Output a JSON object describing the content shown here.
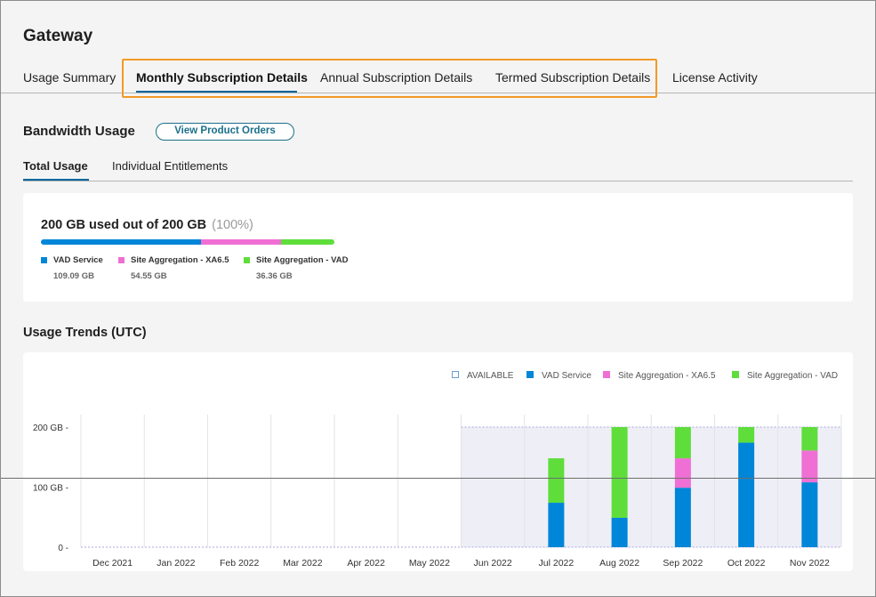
{
  "page": {
    "title": "Gateway"
  },
  "tabs": [
    {
      "label": "Usage Summary"
    },
    {
      "label": "Monthly Subscription Details"
    },
    {
      "label": "Annual Subscription Details"
    },
    {
      "label": "Termed Subscription Details"
    },
    {
      "label": "License Activity"
    }
  ],
  "bandwidth": {
    "title": "Bandwidth Usage",
    "orders_button": "View Product Orders",
    "subtabs": [
      {
        "label": "Total Usage"
      },
      {
        "label": "Individual Entitlements"
      }
    ],
    "summary": "200 GB used out of 200 GB",
    "percent": "(100%)",
    "legend": [
      {
        "name": "VAD Service",
        "value": "109.09 GB",
        "color": "#0086d8",
        "fraction": 0.545
      },
      {
        "name": "Site Aggregation - XA6.5",
        "value": "54.55 GB",
        "color": "#ef6fd4",
        "fraction": 0.273
      },
      {
        "name": "Site Aggregation - VAD",
        "value": "36.36 GB",
        "color": "#5fdd3b",
        "fraction": 0.182
      }
    ]
  },
  "trends": {
    "title": "Usage Trends (UTC)"
  },
  "chart_data": {
    "type": "bar",
    "stacked": true,
    "categories": [
      "Dec 2021",
      "Jan 2022",
      "Feb 2022",
      "Mar 2022",
      "Apr 2022",
      "May 2022",
      "Jun 2022",
      "Jul 2022",
      "Aug 2022",
      "Sep 2022",
      "Oct 2022",
      "Nov 2022"
    ],
    "ylim": [
      0,
      200
    ],
    "yticks": [
      {
        "value": 0,
        "label": "0 -"
      },
      {
        "value": 100,
        "label": "100 GB -"
      },
      {
        "value": 200,
        "label": "200 GB -"
      }
    ],
    "available": {
      "name": "AVAILABLE",
      "value": 200,
      "from_index": 6
    },
    "series": [
      {
        "name": "VAD Service",
        "color": "#0086d8",
        "values": [
          0,
          0,
          0,
          0,
          0,
          0,
          0,
          74,
          49,
          99,
          174,
          108
        ]
      },
      {
        "name": "Site Aggregation - XA6.5",
        "color": "#ef6fd4",
        "values": [
          0,
          0,
          0,
          0,
          0,
          0,
          0,
          0,
          0,
          49,
          0,
          53
        ]
      },
      {
        "name": "Site Aggregation - VAD",
        "color": "#5fdd3b",
        "values": [
          0,
          0,
          0,
          0,
          0,
          0,
          0,
          74,
          151,
          52,
          26,
          39
        ]
      }
    ],
    "legend_position": "top-right"
  }
}
